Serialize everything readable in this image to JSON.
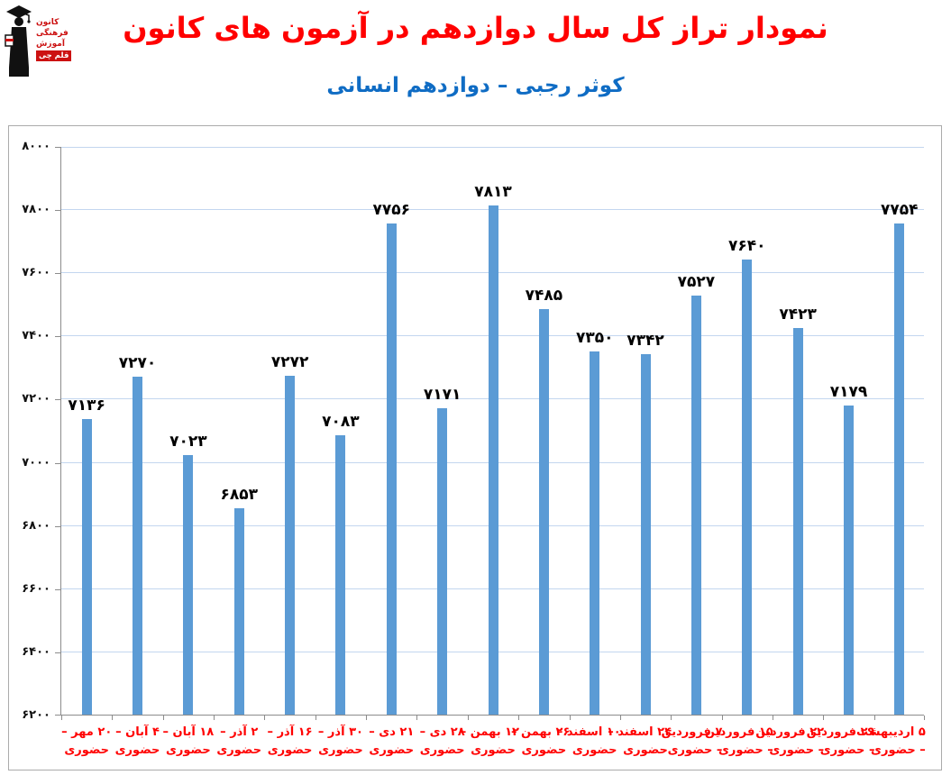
{
  "header": {
    "title": "نمودار تراز کل سال دوازدهم در آزمون های کانون",
    "subtitle": "کوثر رجبی – دوازدهم انسانی"
  },
  "logo": {
    "text_lines": [
      "کانون",
      "فرهنگی",
      "آموزش"
    ],
    "badge": "قلم چی"
  },
  "colors": {
    "title": "#FF0000",
    "subtitle": "#0F6CC4",
    "bar": "#5B9BD5",
    "gridline": "#C3D6EF",
    "axis": "#8C8C8C",
    "category_label": "#FF0000",
    "value_label": "#000000",
    "frame_border": "#ABABAB",
    "logo_red": "#CC1111"
  },
  "chart_data": {
    "type": "bar",
    "title": "نمودار تراز کل سال دوازدهم در آزمون های کانون",
    "subtitle": "کوثر رجبی – دوازدهم انسانی",
    "xlabel": "",
    "ylabel": "",
    "ylim": [
      6200,
      8000
    ],
    "y_tick_step": 200,
    "grid": true,
    "legend": false,
    "categories": [
      "۲۰ مهر – حضوری",
      "۴ آبان – حضوری",
      "۱۸ آبان – حضوری",
      "۲ آذر – حضوری",
      "۱۶ آذر – حضوری",
      "۳۰ آذر – حضوری",
      "۲۱ دی – حضوری",
      "۲۸ دی – حضوری",
      "۱۲ بهمن – حضوری",
      "۲۶ بهمن – حضوری",
      "۱۰ اسفند – حضوری",
      "۲۴ اسفند – حضوری",
      "۷ فروردین – حضوری",
      "۱۵ فروردین – حضوری",
      "۲۲ فروردین – حضوری",
      "۲۹ فروردین – حضوری",
      "۵ اردیبهشت – حضوری"
    ],
    "category_lines": [
      [
        "۲۰ مهر –",
        "حضوری"
      ],
      [
        "۴ آبان –",
        "حضوری"
      ],
      [
        "۱۸ آبان –",
        "حضوری"
      ],
      [
        "۲ آذر –",
        "حضوری"
      ],
      [
        "۱۶ آذر –",
        "حضوری"
      ],
      [
        "۳۰ آذر –",
        "حضوری"
      ],
      [
        "۲۱ دی –",
        "حضوری"
      ],
      [
        "۲۸ دی –",
        "حضوری"
      ],
      [
        "۱۲ بهمن –",
        "حضوری"
      ],
      [
        "۲۶ بهمن –",
        "حضوری"
      ],
      [
        "۱۰ اسفند –",
        "حضوری"
      ],
      [
        "۲۴ اسفند –",
        "حضوری"
      ],
      [
        "۷ فروردین",
        "– حضوری"
      ],
      [
        "۱۵ فروردین",
        "– حضوری"
      ],
      [
        "۲۲ فروردین",
        "– حضوری"
      ],
      [
        "۲۹ فروردین",
        "– حضوری"
      ],
      [
        "۵ اردیبهشت",
        "– حضوری"
      ]
    ],
    "values": [
      7136,
      7270,
      7023,
      6853,
      7272,
      7083,
      7756,
      7171,
      7813,
      7485,
      7350,
      7342,
      7527,
      7640,
      7423,
      7179,
      7754
    ],
    "value_labels": [
      "۷۱۳۶",
      "۷۲۷۰",
      "۷۰۲۳",
      "۶۸۵۳",
      "۷۲۷۲",
      "۷۰۸۳",
      "۷۷۵۶",
      "۷۱۷۱",
      "۷۸۱۳",
      "۷۴۸۵",
      "۷۳۵۰",
      "۷۳۴۲",
      "۷۵۲۷",
      "۷۶۴۰",
      "۷۴۲۳",
      "۷۱۷۹",
      "۷۷۵۴"
    ],
    "y_ticks": [
      {
        "value": 8000,
        "label": "۸۰۰۰"
      },
      {
        "value": 7800,
        "label": "۷۸۰۰"
      },
      {
        "value": 7600,
        "label": "۷۶۰۰"
      },
      {
        "value": 7400,
        "label": "۷۴۰۰"
      },
      {
        "value": 7200,
        "label": "۷۲۰۰"
      },
      {
        "value": 7000,
        "label": "۷۰۰۰"
      },
      {
        "value": 6800,
        "label": "۶۸۰۰"
      },
      {
        "value": 6600,
        "label": "۶۶۰۰"
      },
      {
        "value": 6400,
        "label": "۶۴۰۰"
      },
      {
        "value": 6200,
        "label": "۶۲۰۰"
      }
    ]
  }
}
